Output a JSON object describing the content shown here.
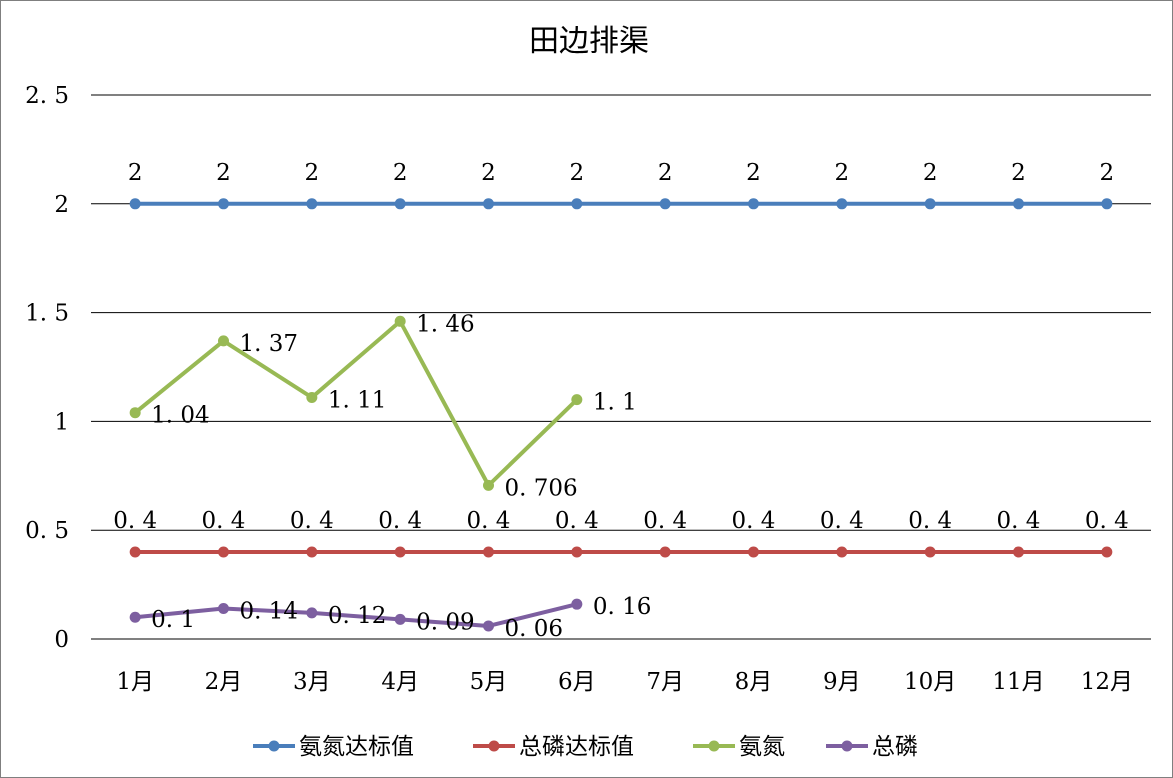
{
  "chart_data": {
    "type": "line",
    "title": "田边排渠",
    "xlabel": "",
    "ylabel": "",
    "categories": [
      "1月",
      "2月",
      "3月",
      "4月",
      "5月",
      "6月",
      "7月",
      "8月",
      "9月",
      "10月",
      "11月",
      "12月"
    ],
    "ylim": [
      0,
      2.5
    ],
    "yticks": [
      0,
      0.5,
      1,
      1.5,
      2,
      2.5
    ],
    "ytick_labels": [
      "0",
      "0.5",
      "1",
      "1.5",
      "2",
      "2.5"
    ],
    "grid": true,
    "legend_position": "bottom",
    "series": [
      {
        "name": "氨氮达标值",
        "color": "#4a7ebb",
        "values": [
          2,
          2,
          2,
          2,
          2,
          2,
          2,
          2,
          2,
          2,
          2,
          2
        ],
        "labels": [
          "2",
          "2",
          "2",
          "2",
          "2",
          "2",
          "2",
          "2",
          "2",
          "2",
          "2",
          "2"
        ],
        "label_position": "above"
      },
      {
        "name": "总磷达标值",
        "color": "#be4b48",
        "values": [
          0.4,
          0.4,
          0.4,
          0.4,
          0.4,
          0.4,
          0.4,
          0.4,
          0.4,
          0.4,
          0.4,
          0.4
        ],
        "labels": [
          "0.4",
          "0.4",
          "0.4",
          "0.4",
          "0.4",
          "0.4",
          "0.4",
          "0.4",
          "0.4",
          "0.4",
          "0.4",
          "0.4"
        ],
        "label_position": "above"
      },
      {
        "name": "氨氮",
        "color": "#98b954",
        "values": [
          1.04,
          1.37,
          1.11,
          1.46,
          0.706,
          1.1,
          null,
          null,
          null,
          null,
          null,
          null
        ],
        "labels": [
          "1.04",
          "1.37",
          "1.11",
          "1.46",
          "0.706",
          "1.1",
          null,
          null,
          null,
          null,
          null,
          null
        ],
        "label_position": "right"
      },
      {
        "name": "总磷",
        "color": "#7d5fa0",
        "values": [
          0.1,
          0.14,
          0.12,
          0.09,
          0.06,
          0.16,
          null,
          null,
          null,
          null,
          null,
          null
        ],
        "labels": [
          "0.1",
          "0.14",
          "0.12",
          "0.09",
          "0.06",
          "0.16",
          null,
          null,
          null,
          null,
          null,
          null
        ],
        "label_position": "right"
      }
    ]
  }
}
